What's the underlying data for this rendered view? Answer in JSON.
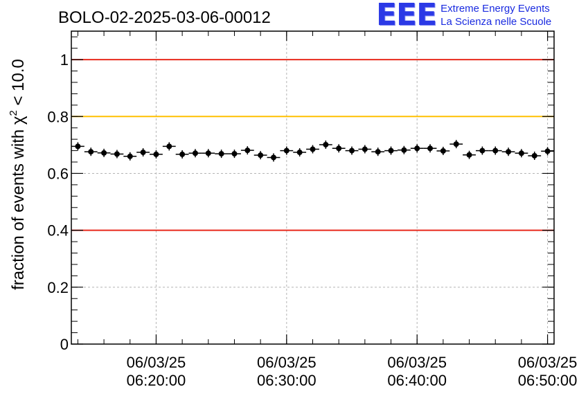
{
  "logo": {
    "mark": "EEE",
    "line1": "Extreme Energy Events",
    "line2": "La Scienza nelle Scuole",
    "color": "#1a2be0"
  },
  "chart_data": {
    "type": "scatter",
    "title": "BOLO-02-2025-03-06-00012",
    "ylabel": "fraction of events with χ² < 10.0",
    "xlabel": "",
    "x_unit": "minutes",
    "xlim": [
      "06:13:30",
      "06:50:30"
    ],
    "ylim": [
      0,
      1.1
    ],
    "y_ticks": [
      0,
      0.2,
      0.4,
      0.6,
      0.8,
      1
    ],
    "y_tick_labels": [
      "0",
      "0.2",
      "0.4",
      "0.6",
      "0.8",
      "1"
    ],
    "x_ticks": [
      "06:20:00",
      "06:30:00",
      "06:40:00",
      "06:50:00"
    ],
    "x_tick_labels": [
      [
        "06/03/25",
        "06:20:00"
      ],
      [
        "06/03/25",
        "06:30:00"
      ],
      [
        "06/03/25",
        "06:40:00"
      ],
      [
        "06/03/25",
        "06:50:00"
      ]
    ],
    "grid": true,
    "reference_lines": [
      {
        "y": 1.0,
        "color": "#e8291c"
      },
      {
        "y": 0.8,
        "color": "#ffc000"
      },
      {
        "y": 0.4,
        "color": "#e8291c"
      }
    ],
    "series": [
      {
        "color": "#000000",
        "points": [
          {
            "x": "06:14:00",
            "y": 0.695
          },
          {
            "x": "06:15:00",
            "y": 0.676
          },
          {
            "x": "06:16:00",
            "y": 0.672
          },
          {
            "x": "06:17:00",
            "y": 0.668
          },
          {
            "x": "06:18:00",
            "y": 0.66
          },
          {
            "x": "06:19:00",
            "y": 0.674
          },
          {
            "x": "06:20:00",
            "y": 0.667
          },
          {
            "x": "06:21:00",
            "y": 0.695
          },
          {
            "x": "06:22:00",
            "y": 0.667
          },
          {
            "x": "06:23:00",
            "y": 0.671
          },
          {
            "x": "06:24:00",
            "y": 0.671
          },
          {
            "x": "06:25:00",
            "y": 0.669
          },
          {
            "x": "06:26:00",
            "y": 0.669
          },
          {
            "x": "06:27:00",
            "y": 0.681
          },
          {
            "x": "06:28:00",
            "y": 0.664
          },
          {
            "x": "06:29:00",
            "y": 0.656
          },
          {
            "x": "06:30:00",
            "y": 0.68
          },
          {
            "x": "06:31:00",
            "y": 0.674
          },
          {
            "x": "06:32:00",
            "y": 0.685
          },
          {
            "x": "06:33:00",
            "y": 0.701
          },
          {
            "x": "06:34:00",
            "y": 0.688
          },
          {
            "x": "06:35:00",
            "y": 0.68
          },
          {
            "x": "06:36:00",
            "y": 0.685
          },
          {
            "x": "06:37:00",
            "y": 0.676
          },
          {
            "x": "06:38:00",
            "y": 0.68
          },
          {
            "x": "06:39:00",
            "y": 0.682
          },
          {
            "x": "06:40:00",
            "y": 0.688
          },
          {
            "x": "06:41:00",
            "y": 0.688
          },
          {
            "x": "06:42:00",
            "y": 0.679
          },
          {
            "x": "06:43:00",
            "y": 0.703
          },
          {
            "x": "06:44:00",
            "y": 0.665
          },
          {
            "x": "06:45:00",
            "y": 0.68
          },
          {
            "x": "06:46:00",
            "y": 0.68
          },
          {
            "x": "06:47:00",
            "y": 0.676
          },
          {
            "x": "06:48:00",
            "y": 0.671
          },
          {
            "x": "06:49:00",
            "y": 0.662
          },
          {
            "x": "06:50:00",
            "y": 0.678
          }
        ]
      }
    ]
  }
}
